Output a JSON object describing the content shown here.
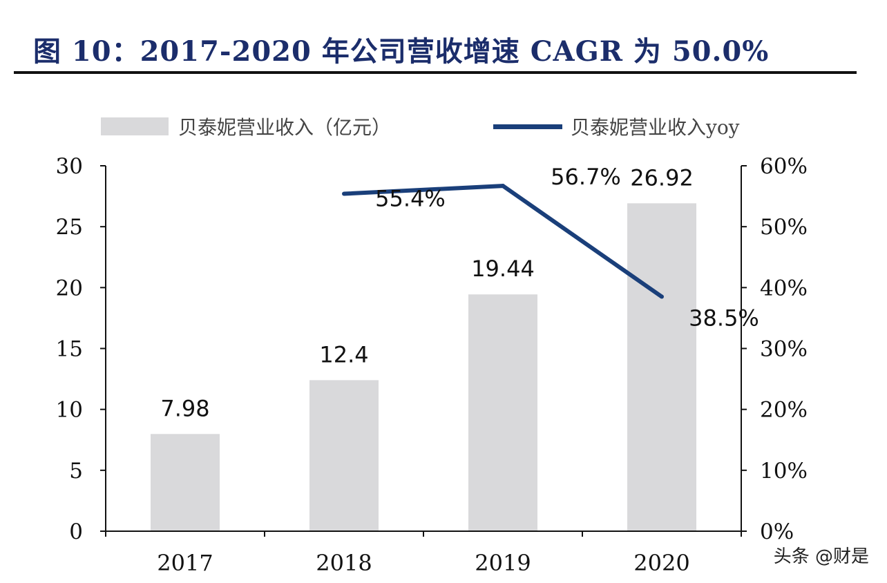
{
  "header": {
    "title": "图 10：2017-2020 年公司营收增速 CAGR 为 50.0%"
  },
  "legend": {
    "bar_label": "贝泰妮营业收入（亿元）",
    "line_label": "贝泰妮营业收入yoy"
  },
  "watermark": "头条 @财是",
  "colors": {
    "bar": "#d9d9db",
    "line": "#1a3f7a",
    "title": "#1b2d6b"
  },
  "chart_data": {
    "type": "bar",
    "categories": [
      "2017",
      "2018",
      "2019",
      "2020"
    ],
    "series": [
      {
        "name": "贝泰妮营业收入（亿元）",
        "type": "bar",
        "axis": "left",
        "values": [
          7.98,
          12.4,
          19.44,
          26.92
        ],
        "labels": [
          "7.98",
          "12.4",
          "19.44",
          "26.92"
        ]
      },
      {
        "name": "贝泰妮营业收入yoy",
        "type": "line",
        "axis": "right",
        "values": [
          null,
          55.4,
          56.7,
          38.5
        ],
        "labels": [
          "",
          "55.4%",
          "56.7%",
          "38.5%"
        ]
      }
    ],
    "y_left": {
      "min": 0,
      "max": 30,
      "ticks": [
        "0",
        "5",
        "10",
        "15",
        "20",
        "25",
        "30"
      ]
    },
    "y_right": {
      "min": 0,
      "max": 60,
      "ticks": [
        "0%",
        "10%",
        "20%",
        "30%",
        "40%",
        "50%",
        "60%"
      ]
    },
    "grid": false,
    "legend_position": "top"
  }
}
